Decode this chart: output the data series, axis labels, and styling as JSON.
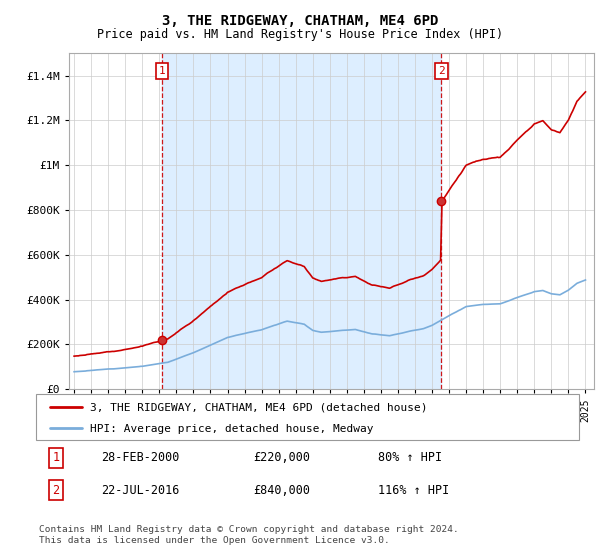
{
  "title": "3, THE RIDGEWAY, CHATHAM, ME4 6PD",
  "subtitle": "Price paid vs. HM Land Registry's House Price Index (HPI)",
  "footer": "Contains HM Land Registry data © Crown copyright and database right 2024.\nThis data is licensed under the Open Government Licence v3.0.",
  "legend_line1": "3, THE RIDGEWAY, CHATHAM, ME4 6PD (detached house)",
  "legend_line2": "HPI: Average price, detached house, Medway",
  "sale1_label": "1",
  "sale1_date": "28-FEB-2000",
  "sale1_price": "£220,000",
  "sale1_hpi": "80% ↑ HPI",
  "sale2_label": "2",
  "sale2_date": "22-JUL-2016",
  "sale2_price": "£840,000",
  "sale2_hpi": "116% ↑ HPI",
  "ylim": [
    0,
    1500000
  ],
  "yticks": [
    0,
    200000,
    400000,
    600000,
    800000,
    1000000,
    1200000,
    1400000
  ],
  "ytick_labels": [
    "£0",
    "£200K",
    "£400K",
    "£600K",
    "£800K",
    "£1M",
    "£1.2M",
    "£1.4M"
  ],
  "red_line_color": "#cc0000",
  "blue_line_color": "#7aaddb",
  "fill_color": "#ddeeff",
  "vline_color": "#cc0000",
  "background_color": "#ffffff",
  "grid_color": "#cccccc",
  "sale1_year": 2000.16,
  "sale2_year": 2016.55,
  "sale1_value": 220000,
  "sale2_value": 840000,
  "xmin": 1995,
  "xmax": 2025
}
